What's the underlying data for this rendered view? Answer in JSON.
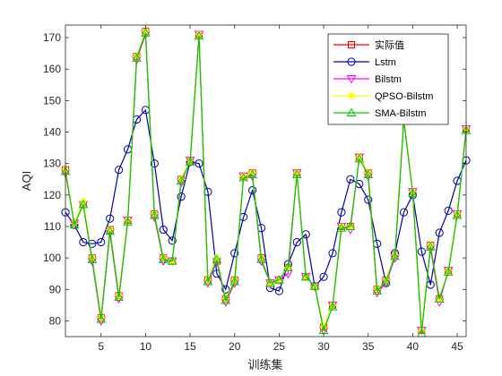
{
  "chart_data": {
    "type": "line",
    "xlabel": "训练集",
    "ylabel": "AQI",
    "xlim": [
      1,
      46
    ],
    "ylim": [
      75,
      174
    ],
    "xticks": [
      5,
      10,
      15,
      20,
      25,
      30,
      35,
      40,
      45
    ],
    "yticks": [
      80,
      90,
      100,
      110,
      120,
      130,
      140,
      150,
      160,
      170
    ],
    "grid": false,
    "legend_position": "top-right",
    "x": [
      1,
      2,
      3,
      4,
      5,
      6,
      7,
      8,
      9,
      10,
      11,
      12,
      13,
      14,
      15,
      16,
      17,
      18,
      19,
      20,
      21,
      22,
      23,
      24,
      25,
      26,
      27,
      28,
      29,
      30,
      31,
      32,
      33,
      34,
      35,
      36,
      37,
      38,
      39,
      40,
      41,
      42,
      43,
      44,
      45,
      46
    ],
    "series": [
      {
        "name": "实际值",
        "color": "#ff0000",
        "marker": "square",
        "values": [
          128,
          111,
          117,
          100,
          81,
          109,
          88,
          112,
          164,
          172,
          114,
          100,
          99,
          125,
          131,
          171,
          93,
          99,
          87,
          93,
          126,
          127,
          100,
          92,
          93,
          97,
          127,
          94,
          91,
          78,
          85,
          110,
          110,
          132,
          127,
          90,
          93,
          101,
          144,
          121,
          77,
          104,
          87,
          96,
          114,
          141
        ]
      },
      {
        "name": "Lstm",
        "color": "#0000aa",
        "marker": "circle",
        "values": [
          114.5,
          110.5,
          105,
          104.5,
          105,
          112.5,
          128,
          134.5,
          144,
          147,
          130,
          109,
          105.5,
          119.5,
          130.5,
          130,
          121,
          95,
          90,
          101.5,
          113,
          121.5,
          109.5,
          90.5,
          89.5,
          98,
          105,
          107.5,
          91,
          94,
          101.5,
          114.5,
          125,
          123.5,
          118.5,
          104.5,
          92,
          101.5,
          114.5,
          120,
          102,
          91.5,
          108,
          115,
          124.5,
          131
        ]
      },
      {
        "name": "Bilstm",
        "color": "#ff00ff",
        "marker": "triangle-down",
        "values": [
          127,
          111,
          117,
          99,
          80,
          108,
          87,
          112,
          163,
          171,
          113,
          99,
          99,
          124,
          131,
          171,
          92,
          99,
          86,
          92,
          126,
          126,
          99,
          92,
          93,
          95,
          127,
          94,
          91,
          77,
          85,
          110,
          109,
          132,
          126,
          89,
          92,
          100,
          144,
          121,
          77,
          103,
          86,
          96,
          114,
          141
        ]
      },
      {
        "name": "QPSO-Bilstm",
        "color": "#ffff00",
        "marker": "star",
        "values": [
          128,
          111,
          118,
          100,
          81,
          109,
          88,
          112,
          164,
          172,
          114,
          100,
          99,
          125,
          131,
          171,
          93,
          100,
          87,
          93,
          126,
          127,
          100,
          92,
          93,
          97,
          127,
          94,
          91,
          78,
          85,
          110,
          110,
          132,
          127,
          90,
          93,
          101,
          144,
          121,
          77,
          104,
          87,
          96,
          114,
          141
        ]
      },
      {
        "name": "SMA-Bilstm",
        "color": "#00cc00",
        "marker": "triangle-up",
        "values": [
          127.5,
          110.5,
          117,
          99.5,
          80.5,
          108.5,
          87.5,
          111.5,
          163.5,
          171.5,
          113.5,
          99.5,
          99,
          124.5,
          130.5,
          170.5,
          92.5,
          99.5,
          86.5,
          92.5,
          125.5,
          126.5,
          99.5,
          92,
          93,
          97,
          126.5,
          94,
          91,
          77,
          84.5,
          109.5,
          110,
          131.5,
          126.5,
          89.5,
          92.5,
          100.5,
          143.5,
          120.5,
          76,
          103.5,
          87,
          95.5,
          113.5,
          140.5
        ]
      }
    ]
  }
}
